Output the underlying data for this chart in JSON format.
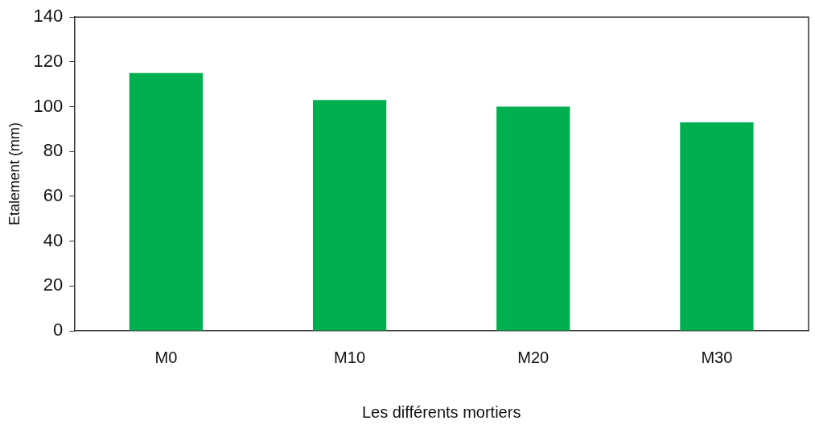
{
  "chart_data": {
    "type": "bar",
    "xlabel": "Les différents mortiers",
    "ylabel": "Etalement (mm)",
    "categories": [
      "M0",
      "M10",
      "M20",
      "M30"
    ],
    "values": [
      115,
      103,
      100,
      93
    ],
    "color": "#00b050",
    "ylim": [
      0,
      140
    ],
    "yticks": [
      0,
      20,
      40,
      60,
      80,
      100,
      120,
      140
    ],
    "grid": false,
    "legend": false
  }
}
